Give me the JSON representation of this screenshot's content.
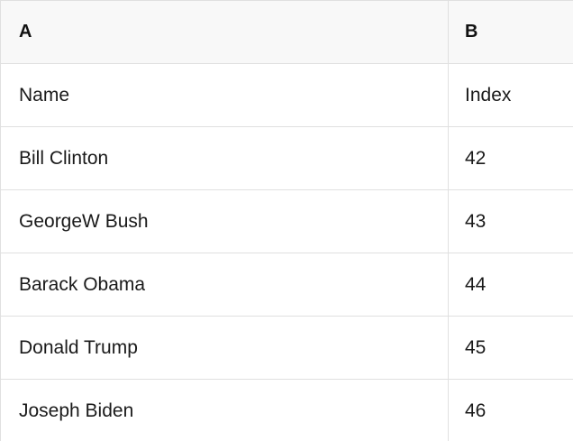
{
  "table": {
    "header": [
      "A",
      "B"
    ],
    "rows": [
      [
        "Name",
        "Index"
      ],
      [
        "Bill Clinton",
        "42"
      ],
      [
        "GeorgeW Bush",
        "43"
      ],
      [
        "Barack Obama",
        "44"
      ],
      [
        "Donald Trump",
        "45"
      ],
      [
        "Joseph Biden",
        "46"
      ]
    ],
    "colors": {
      "header_bg": "#f8f8f8",
      "border": "#e0e0e0",
      "text": "#1a1a1a"
    }
  }
}
